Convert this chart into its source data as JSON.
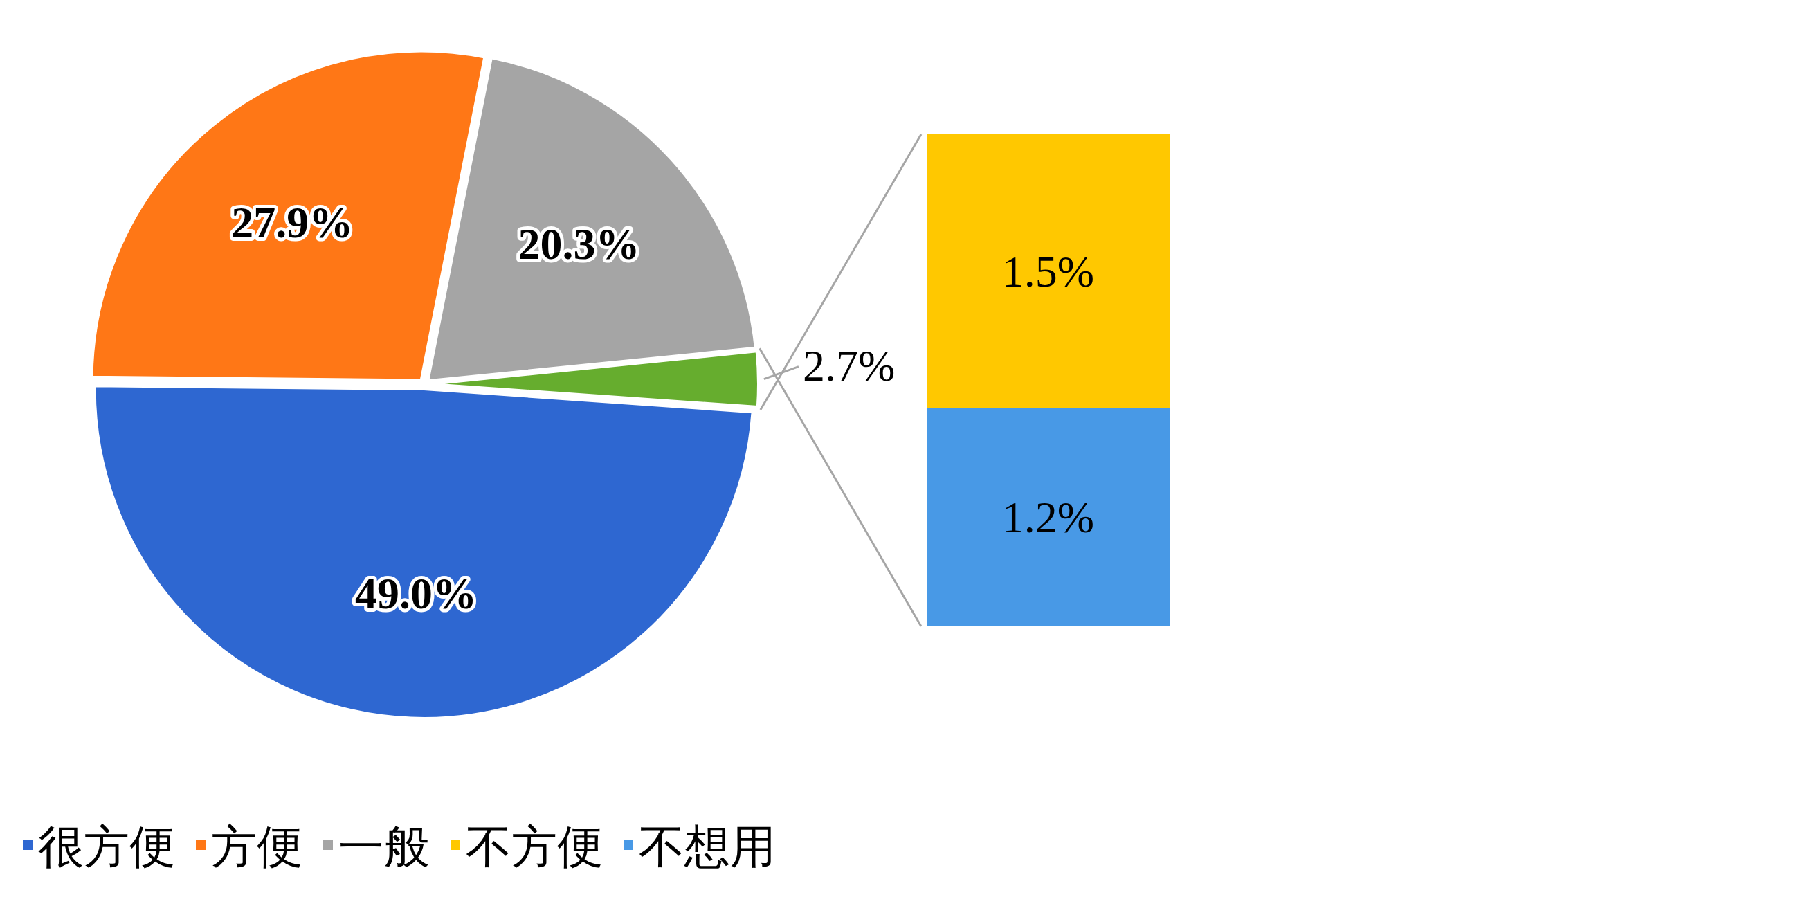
{
  "chart_data": [
    {
      "type": "pie",
      "categories": [
        "很方便",
        "方便",
        "一般",
        null
      ],
      "values": [
        49.0,
        27.9,
        20.3,
        2.7
      ],
      "value_labels": [
        "49.0%",
        "27.9%",
        "20.3%",
        "2.7%"
      ],
      "colors": [
        "#2e67d1",
        "#ff7716",
        "#a5a5a5",
        "#66ad2e"
      ],
      "legend": "bottom"
    },
    {
      "type": "bar",
      "stacked": true,
      "categories": [
        null
      ],
      "series": [
        {
          "name": "不想用",
          "color": "#4899e6",
          "values": [
            1.2
          ],
          "value_labels": [
            "1.2%"
          ]
        },
        {
          "name": "不方便",
          "color": "#ffc800",
          "values": [
            1.5
          ],
          "value_labels": [
            "1.5%"
          ]
        }
      ],
      "legend": "bottom"
    }
  ]
}
